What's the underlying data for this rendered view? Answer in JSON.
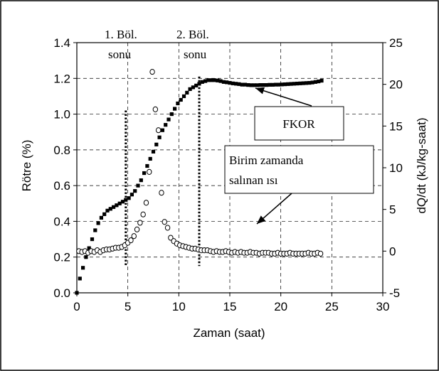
{
  "chart_data": {
    "type": "scatter",
    "xlabel": "Zaman (saat)",
    "ylabel": "Rötre (%)",
    "y2label": "dQ/dt (kJ/kg-saat)",
    "xlim": [
      0,
      30
    ],
    "ylim": [
      0,
      1.4
    ],
    "y2lim": [
      -5,
      25
    ],
    "xticks": [
      "0",
      "5",
      "10",
      "15",
      "20",
      "25",
      "30"
    ],
    "yticks": [
      "0.0",
      "0.2",
      "0.4",
      "0.6",
      "0.8",
      "1.0",
      "1.2",
      "1.4"
    ],
    "y2ticks": [
      "-5",
      "0",
      "5",
      "10",
      "15",
      "20",
      "25"
    ],
    "grid": "dashed",
    "series": [
      {
        "name": "FKOR",
        "axis": "left",
        "marker": "filled-square",
        "x": [
          0,
          0.3,
          0.6,
          0.9,
          1.2,
          1.5,
          1.8,
          2.1,
          2.4,
          2.7,
          3.0,
          3.3,
          3.6,
          3.9,
          4.2,
          4.5,
          4.8,
          5.1,
          5.4,
          5.7,
          6.0,
          6.3,
          6.6,
          6.9,
          7.2,
          7.5,
          7.8,
          8.1,
          8.4,
          8.7,
          9.0,
          9.3,
          9.6,
          9.9,
          10.2,
          10.5,
          10.8,
          11.1,
          11.4,
          11.7,
          12.0,
          12.3,
          12.6,
          12.9,
          13.2,
          13.5,
          13.8,
          14.1,
          14.4,
          14.7,
          15.0,
          15.3,
          15.6,
          15.9,
          16.2,
          16.5,
          16.8,
          17.1,
          17.4,
          17.7,
          18.0,
          18.3,
          18.6,
          18.9,
          19.2,
          19.5,
          19.8,
          20.1,
          20.4,
          20.7,
          21.0,
          21.3,
          21.6,
          21.9,
          22.2,
          22.5,
          22.8,
          23.1,
          23.4,
          23.7,
          24.0
        ],
        "values": [
          0.0,
          0.08,
          0.14,
          0.2,
          0.25,
          0.3,
          0.35,
          0.39,
          0.42,
          0.44,
          0.46,
          0.47,
          0.48,
          0.49,
          0.5,
          0.51,
          0.52,
          0.53,
          0.55,
          0.57,
          0.6,
          0.63,
          0.67,
          0.71,
          0.75,
          0.79,
          0.83,
          0.87,
          0.91,
          0.94,
          0.97,
          1.0,
          1.03,
          1.06,
          1.08,
          1.1,
          1.12,
          1.14,
          1.15,
          1.16,
          1.17,
          1.18,
          1.185,
          1.19,
          1.19,
          1.19,
          1.188,
          1.185,
          1.18,
          1.178,
          1.175,
          1.172,
          1.17,
          1.168,
          1.165,
          1.165,
          1.163,
          1.162,
          1.162,
          1.162,
          1.163,
          1.163,
          1.163,
          1.164,
          1.164,
          1.165,
          1.165,
          1.166,
          1.167,
          1.168,
          1.169,
          1.17,
          1.171,
          1.172,
          1.173,
          1.174,
          1.175,
          1.177,
          1.18,
          1.183,
          1.187
        ]
      },
      {
        "name": "Birim zamanda salınan ısı",
        "axis": "right",
        "marker": "open-circle",
        "x": [
          0.2,
          0.5,
          0.8,
          1.1,
          1.4,
          1.7,
          2.0,
          2.3,
          2.6,
          2.9,
          3.2,
          3.5,
          3.8,
          4.1,
          4.4,
          4.7,
          5.0,
          5.3,
          5.6,
          5.9,
          6.2,
          6.5,
          6.8,
          7.1,
          7.4,
          7.7,
          8.0,
          8.3,
          8.6,
          8.9,
          9.2,
          9.5,
          9.8,
          10.1,
          10.4,
          10.7,
          11.0,
          11.3,
          11.6,
          11.9,
          12.2,
          12.5,
          12.8,
          13.1,
          13.4,
          13.7,
          14.0,
          14.3,
          14.6,
          14.9,
          15.2,
          15.5,
          15.8,
          16.1,
          16.4,
          16.7,
          17.0,
          17.3,
          17.6,
          17.9,
          18.2,
          18.5,
          18.8,
          19.1,
          19.4,
          19.7,
          20.0,
          20.3,
          20.6,
          20.9,
          21.2,
          21.5,
          21.8,
          22.1,
          22.4,
          22.7,
          23.0,
          23.3,
          23.6,
          23.9
        ],
        "values": [
          0.0,
          -0.1,
          0.0,
          -0.2,
          0.0,
          -0.1,
          0.1,
          -0.1,
          0.1,
          0.2,
          0.2,
          0.3,
          0.4,
          0.4,
          0.5,
          0.7,
          1.0,
          1.3,
          1.8,
          2.6,
          3.4,
          4.4,
          5.8,
          9.5,
          21.5,
          17.0,
          14.5,
          7.0,
          3.5,
          2.8,
          1.6,
          1.2,
          0.9,
          0.7,
          0.6,
          0.5,
          0.4,
          0.3,
          0.3,
          0.2,
          0.1,
          0.1,
          0.1,
          0.0,
          -0.1,
          0.0,
          -0.1,
          -0.1,
          0.0,
          -0.1,
          -0.2,
          -0.1,
          -0.2,
          -0.1,
          -0.2,
          -0.2,
          -0.1,
          -0.2,
          -0.2,
          -0.3,
          -0.2,
          -0.2,
          -0.2,
          -0.3,
          -0.3,
          -0.2,
          -0.3,
          -0.3,
          -0.3,
          -0.2,
          -0.3,
          -0.3,
          -0.3,
          -0.3,
          -0.3,
          -0.2,
          -0.3,
          -0.3,
          -0.2,
          -0.3
        ]
      }
    ],
    "vlines": [
      {
        "x": 4.8,
        "y_from": 0.15,
        "y_to": 1.02
      },
      {
        "x": 12.0,
        "y_from": 0.15,
        "y_to": 1.21
      }
    ],
    "annotations": [
      {
        "id": "phase1",
        "lines": [
          "1. Böl.",
          "sonu"
        ]
      },
      {
        "id": "phase2",
        "lines": [
          "2. Böl.",
          "sonu"
        ]
      },
      {
        "id": "fkor-box",
        "text": "FKOR",
        "arrow_to": {
          "x": 15.8,
          "y": 1.17
        }
      },
      {
        "id": "heat-box",
        "lines": [
          "Birim zamanda",
          "salınan ısı"
        ],
        "arrow_to": {
          "x": 18.0,
          "y": 0.28
        }
      }
    ]
  }
}
